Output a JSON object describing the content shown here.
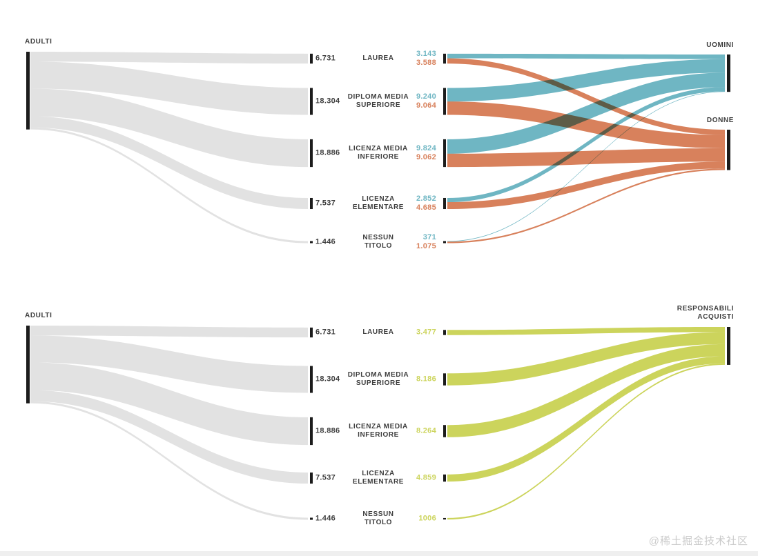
{
  "watermark": "@稀土掘金技术社区",
  "colors": {
    "flow_gray": "#e2e2e2",
    "bar_black": "#1c1c1c",
    "label_dark": "#3d3d3d",
    "uomini_blue": "#6fb6c3",
    "donne_orange": "#d8815c",
    "acquisti_green": "#ccd45c",
    "watermark_gray": "#cbcbcb",
    "background": "#ffffff"
  },
  "chart_data": [
    {
      "type": "sankey",
      "left_node": {
        "label": "ADULTI",
        "total": 52904
      },
      "categories": [
        {
          "label": "LAUREA",
          "label_lines": [
            "LAUREA"
          ],
          "total_label": "6.731",
          "total": 6731,
          "flows": [
            {
              "target": "UOMINI",
              "value_label": "3.143",
              "value": 3143
            },
            {
              "target": "DONNE",
              "value_label": "3.588",
              "value": 3588
            }
          ]
        },
        {
          "label": "DIPLOMA MEDIA SUPERIORE",
          "label_lines": [
            "DIPLOMA MEDIA",
            "SUPERIORE"
          ],
          "total_label": "18.304",
          "total": 18304,
          "flows": [
            {
              "target": "UOMINI",
              "value_label": "9.240",
              "value": 9240
            },
            {
              "target": "DONNE",
              "value_label": "9.064",
              "value": 9064
            }
          ]
        },
        {
          "label": "LICENZA MEDIA INFERIORE",
          "label_lines": [
            "LICENZA MEDIA",
            "INFERIORE"
          ],
          "total_label": "18.886",
          "total": 18886,
          "flows": [
            {
              "target": "UOMINI",
              "value_label": "9.824",
              "value": 9824
            },
            {
              "target": "DONNE",
              "value_label": "9.062",
              "value": 9062
            }
          ]
        },
        {
          "label": "LICENZA ELEMENTARE",
          "label_lines": [
            "LICENZA",
            "ELEMENTARE"
          ],
          "total_label": "7.537",
          "total": 7537,
          "flows": [
            {
              "target": "UOMINI",
              "value_label": "2.852",
              "value": 2852
            },
            {
              "target": "DONNE",
              "value_label": "4.685",
              "value": 4685
            }
          ]
        },
        {
          "label": "NESSUN TITOLO",
          "label_lines": [
            "NESSUN",
            "TITOLO"
          ],
          "total_label": "1.446",
          "total": 1446,
          "flows": [
            {
              "target": "UOMINI",
              "value_label": "371",
              "value": 371
            },
            {
              "target": "DONNE",
              "value_label": "1.075",
              "value": 1075
            }
          ]
        }
      ],
      "right_nodes": [
        {
          "label": "UOMINI",
          "label_lines": [
            "UOMINI"
          ],
          "color_key": "uomini_blue",
          "total": 25430
        },
        {
          "label": "DONNE",
          "label_lines": [
            "DONNE"
          ],
          "color_key": "donne_orange",
          "total": 27474
        }
      ]
    },
    {
      "type": "sankey",
      "left_node": {
        "label": "ADULTI",
        "total": 52904
      },
      "categories": [
        {
          "label": "LAUREA",
          "label_lines": [
            "LAUREA"
          ],
          "total_label": "6.731",
          "total": 6731,
          "flows": [
            {
              "target": "RESPONSABILI ACQUISTI",
              "value_label": "3.477",
              "value": 3477
            }
          ]
        },
        {
          "label": "DIPLOMA MEDIA SUPERIORE",
          "label_lines": [
            "DIPLOMA MEDIA",
            "SUPERIORE"
          ],
          "total_label": "18.304",
          "total": 18304,
          "flows": [
            {
              "target": "RESPONSABILI ACQUISTI",
              "value_label": "8.186",
              "value": 8186
            }
          ]
        },
        {
          "label": "LICENZA MEDIA INFERIORE",
          "label_lines": [
            "LICENZA MEDIA",
            "INFERIORE"
          ],
          "total_label": "18.886",
          "total": 18886,
          "flows": [
            {
              "target": "RESPONSABILI ACQUISTI",
              "value_label": "8.264",
              "value": 8264
            }
          ]
        },
        {
          "label": "LICENZA ELEMENTARE",
          "label_lines": [
            "LICENZA",
            "ELEMENTARE"
          ],
          "total_label": "7.537",
          "total": 7537,
          "flows": [
            {
              "target": "RESPONSABILI ACQUISTI",
              "value_label": "4.859",
              "value": 4859
            }
          ]
        },
        {
          "label": "NESSUN TITOLO",
          "label_lines": [
            "NESSUN",
            "TITOLO"
          ],
          "total_label": "1.446",
          "total": 1446,
          "flows": [
            {
              "target": "RESPONSABILI ACQUISTI",
              "value_label": "1006",
              "value": 1006
            }
          ]
        }
      ],
      "right_nodes": [
        {
          "label": "RESPONSABILI ACQUISTI",
          "label_lines": [
            "RESPONSABILI",
            "ACQUISTI"
          ],
          "color_key": "acquisti_green",
          "total": 25792
        }
      ]
    }
  ]
}
